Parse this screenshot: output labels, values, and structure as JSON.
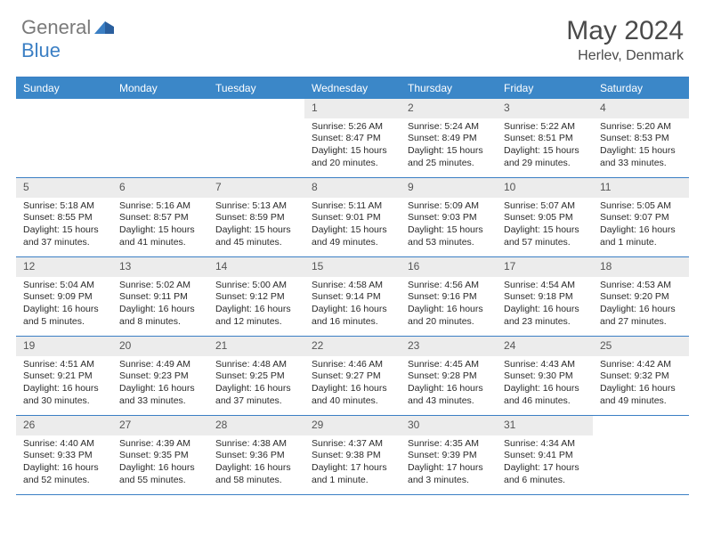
{
  "brand": {
    "text1": "General",
    "text2": "Blue"
  },
  "title": "May 2024",
  "location": "Herlev, Denmark",
  "colors": {
    "header_bg": "#3b87c8",
    "border": "#3b7fc4",
    "daynum_bg": "#ececec",
    "text_body": "#2a2a2a",
    "text_title": "#4a4a4a",
    "logo_gray": "#7a7a7a",
    "logo_blue": "#3b7fc4"
  },
  "day_labels": [
    "Sunday",
    "Monday",
    "Tuesday",
    "Wednesday",
    "Thursday",
    "Friday",
    "Saturday"
  ],
  "weeks": [
    [
      {
        "n": "",
        "sr": "",
        "ss": "",
        "dl1": "",
        "dl2": ""
      },
      {
        "n": "",
        "sr": "",
        "ss": "",
        "dl1": "",
        "dl2": ""
      },
      {
        "n": "",
        "sr": "",
        "ss": "",
        "dl1": "",
        "dl2": ""
      },
      {
        "n": "1",
        "sr": "Sunrise: 5:26 AM",
        "ss": "Sunset: 8:47 PM",
        "dl1": "Daylight: 15 hours",
        "dl2": "and 20 minutes."
      },
      {
        "n": "2",
        "sr": "Sunrise: 5:24 AM",
        "ss": "Sunset: 8:49 PM",
        "dl1": "Daylight: 15 hours",
        "dl2": "and 25 minutes."
      },
      {
        "n": "3",
        "sr": "Sunrise: 5:22 AM",
        "ss": "Sunset: 8:51 PM",
        "dl1": "Daylight: 15 hours",
        "dl2": "and 29 minutes."
      },
      {
        "n": "4",
        "sr": "Sunrise: 5:20 AM",
        "ss": "Sunset: 8:53 PM",
        "dl1": "Daylight: 15 hours",
        "dl2": "and 33 minutes."
      }
    ],
    [
      {
        "n": "5",
        "sr": "Sunrise: 5:18 AM",
        "ss": "Sunset: 8:55 PM",
        "dl1": "Daylight: 15 hours",
        "dl2": "and 37 minutes."
      },
      {
        "n": "6",
        "sr": "Sunrise: 5:16 AM",
        "ss": "Sunset: 8:57 PM",
        "dl1": "Daylight: 15 hours",
        "dl2": "and 41 minutes."
      },
      {
        "n": "7",
        "sr": "Sunrise: 5:13 AM",
        "ss": "Sunset: 8:59 PM",
        "dl1": "Daylight: 15 hours",
        "dl2": "and 45 minutes."
      },
      {
        "n": "8",
        "sr": "Sunrise: 5:11 AM",
        "ss": "Sunset: 9:01 PM",
        "dl1": "Daylight: 15 hours",
        "dl2": "and 49 minutes."
      },
      {
        "n": "9",
        "sr": "Sunrise: 5:09 AM",
        "ss": "Sunset: 9:03 PM",
        "dl1": "Daylight: 15 hours",
        "dl2": "and 53 minutes."
      },
      {
        "n": "10",
        "sr": "Sunrise: 5:07 AM",
        "ss": "Sunset: 9:05 PM",
        "dl1": "Daylight: 15 hours",
        "dl2": "and 57 minutes."
      },
      {
        "n": "11",
        "sr": "Sunrise: 5:05 AM",
        "ss": "Sunset: 9:07 PM",
        "dl1": "Daylight: 16 hours",
        "dl2": "and 1 minute."
      }
    ],
    [
      {
        "n": "12",
        "sr": "Sunrise: 5:04 AM",
        "ss": "Sunset: 9:09 PM",
        "dl1": "Daylight: 16 hours",
        "dl2": "and 5 minutes."
      },
      {
        "n": "13",
        "sr": "Sunrise: 5:02 AM",
        "ss": "Sunset: 9:11 PM",
        "dl1": "Daylight: 16 hours",
        "dl2": "and 8 minutes."
      },
      {
        "n": "14",
        "sr": "Sunrise: 5:00 AM",
        "ss": "Sunset: 9:12 PM",
        "dl1": "Daylight: 16 hours",
        "dl2": "and 12 minutes."
      },
      {
        "n": "15",
        "sr": "Sunrise: 4:58 AM",
        "ss": "Sunset: 9:14 PM",
        "dl1": "Daylight: 16 hours",
        "dl2": "and 16 minutes."
      },
      {
        "n": "16",
        "sr": "Sunrise: 4:56 AM",
        "ss": "Sunset: 9:16 PM",
        "dl1": "Daylight: 16 hours",
        "dl2": "and 20 minutes."
      },
      {
        "n": "17",
        "sr": "Sunrise: 4:54 AM",
        "ss": "Sunset: 9:18 PM",
        "dl1": "Daylight: 16 hours",
        "dl2": "and 23 minutes."
      },
      {
        "n": "18",
        "sr": "Sunrise: 4:53 AM",
        "ss": "Sunset: 9:20 PM",
        "dl1": "Daylight: 16 hours",
        "dl2": "and 27 minutes."
      }
    ],
    [
      {
        "n": "19",
        "sr": "Sunrise: 4:51 AM",
        "ss": "Sunset: 9:21 PM",
        "dl1": "Daylight: 16 hours",
        "dl2": "and 30 minutes."
      },
      {
        "n": "20",
        "sr": "Sunrise: 4:49 AM",
        "ss": "Sunset: 9:23 PM",
        "dl1": "Daylight: 16 hours",
        "dl2": "and 33 minutes."
      },
      {
        "n": "21",
        "sr": "Sunrise: 4:48 AM",
        "ss": "Sunset: 9:25 PM",
        "dl1": "Daylight: 16 hours",
        "dl2": "and 37 minutes."
      },
      {
        "n": "22",
        "sr": "Sunrise: 4:46 AM",
        "ss": "Sunset: 9:27 PM",
        "dl1": "Daylight: 16 hours",
        "dl2": "and 40 minutes."
      },
      {
        "n": "23",
        "sr": "Sunrise: 4:45 AM",
        "ss": "Sunset: 9:28 PM",
        "dl1": "Daylight: 16 hours",
        "dl2": "and 43 minutes."
      },
      {
        "n": "24",
        "sr": "Sunrise: 4:43 AM",
        "ss": "Sunset: 9:30 PM",
        "dl1": "Daylight: 16 hours",
        "dl2": "and 46 minutes."
      },
      {
        "n": "25",
        "sr": "Sunrise: 4:42 AM",
        "ss": "Sunset: 9:32 PM",
        "dl1": "Daylight: 16 hours",
        "dl2": "and 49 minutes."
      }
    ],
    [
      {
        "n": "26",
        "sr": "Sunrise: 4:40 AM",
        "ss": "Sunset: 9:33 PM",
        "dl1": "Daylight: 16 hours",
        "dl2": "and 52 minutes."
      },
      {
        "n": "27",
        "sr": "Sunrise: 4:39 AM",
        "ss": "Sunset: 9:35 PM",
        "dl1": "Daylight: 16 hours",
        "dl2": "and 55 minutes."
      },
      {
        "n": "28",
        "sr": "Sunrise: 4:38 AM",
        "ss": "Sunset: 9:36 PM",
        "dl1": "Daylight: 16 hours",
        "dl2": "and 58 minutes."
      },
      {
        "n": "29",
        "sr": "Sunrise: 4:37 AM",
        "ss": "Sunset: 9:38 PM",
        "dl1": "Daylight: 17 hours",
        "dl2": "and 1 minute."
      },
      {
        "n": "30",
        "sr": "Sunrise: 4:35 AM",
        "ss": "Sunset: 9:39 PM",
        "dl1": "Daylight: 17 hours",
        "dl2": "and 3 minutes."
      },
      {
        "n": "31",
        "sr": "Sunrise: 4:34 AM",
        "ss": "Sunset: 9:41 PM",
        "dl1": "Daylight: 17 hours",
        "dl2": "and 6 minutes."
      },
      {
        "n": "",
        "sr": "",
        "ss": "",
        "dl1": "",
        "dl2": ""
      }
    ]
  ]
}
